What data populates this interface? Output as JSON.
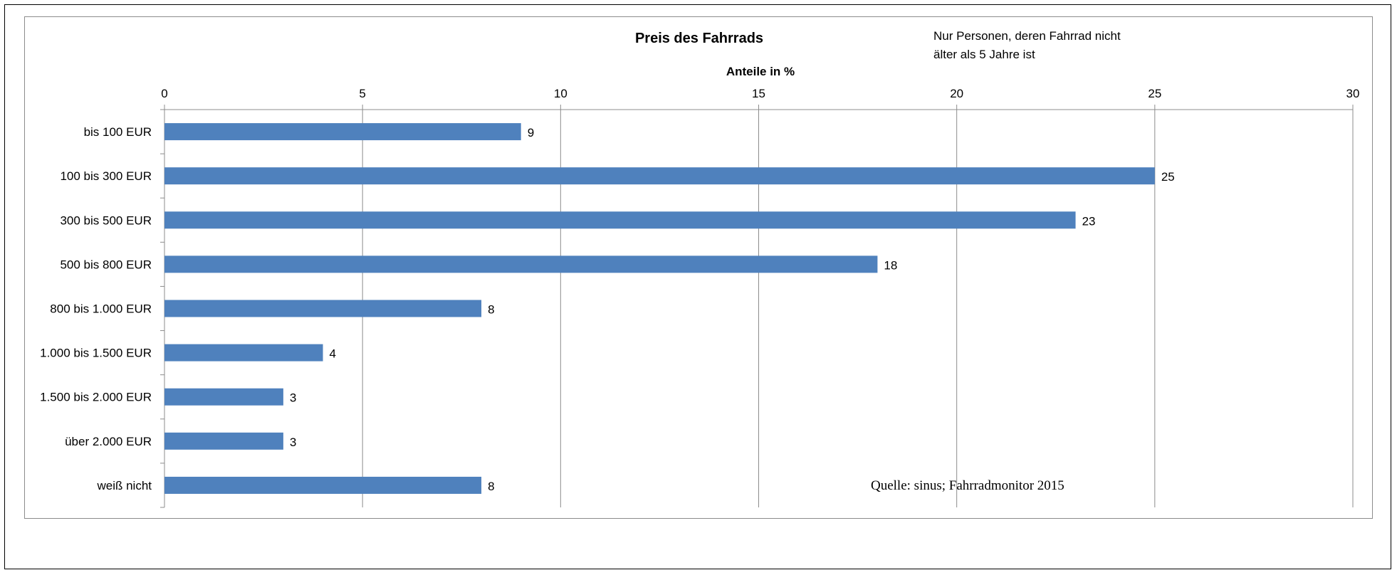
{
  "chart_data": {
    "type": "bar",
    "orientation": "horizontal",
    "title": "Preis des Fahrrads",
    "xlabel": "Anteile in %",
    "ylabel": "",
    "xlim": [
      0,
      30
    ],
    "xticks": [
      "0",
      "5",
      "10",
      "15",
      "20",
      "25",
      "30"
    ],
    "x_axis_position": "top",
    "grid": true,
    "categories": [
      "bis 100 EUR",
      "100 bis 300 EUR",
      "300 bis 500 EUR",
      "500 bis 800 EUR",
      "800 bis 1.000 EUR",
      "1.000 bis 1.500 EUR",
      "1.500 bis 2.000 EUR",
      "über 2.000 EUR",
      "weiß nicht"
    ],
    "values": [
      9,
      25,
      23,
      18,
      8,
      4,
      3,
      3,
      8
    ],
    "data_labels": [
      "9",
      "25",
      "23",
      "18",
      "8",
      "4",
      "3",
      "3",
      "8"
    ],
    "bar_color": "#4f81bd",
    "annotations": {
      "note_line1": "Nur Personen, deren Fahrrad nicht",
      "note_line2": "älter als 5 Jahre ist",
      "source": "Quelle: sinus; Fahrradmonitor 2015"
    }
  }
}
